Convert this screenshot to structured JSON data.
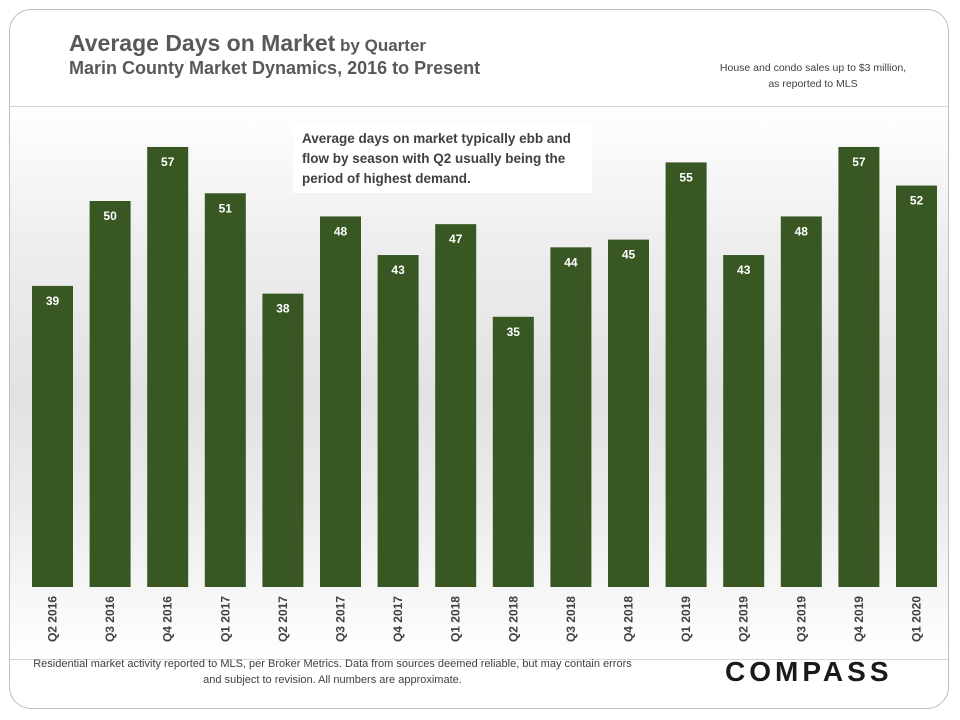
{
  "header": {
    "title_main": "Average Days on Market",
    "title_sub": " by Quarter",
    "subtitle": "Marin County Market Dynamics, 2016 to Present",
    "note": "House and condo sales up to $3 million, as reported to MLS"
  },
  "callout": "Average days on market typically ebb and flow by season with Q2 usually being the period of highest demand.",
  "footer": {
    "disclaimer": "Residential market activity reported to MLS, per Broker Metrics. Data from sources deemed reliable, but may contain errors and subject to revision. All numbers are approximate.",
    "logo": "COMPASS"
  },
  "colors": {
    "bar": "#385723",
    "label": "#ffffff",
    "axis_text": "#404040"
  },
  "chart_data": {
    "type": "bar",
    "title": "Average Days on Market by Quarter",
    "xlabel": "",
    "ylabel": "",
    "ylim": [
      0,
      60
    ],
    "grid": false,
    "categories": [
      "Q2 2016",
      "Q3 2016",
      "Q4 2016",
      "Q1 2017",
      "Q2 2017",
      "Q3 2017",
      "Q4 2017",
      "Q1 2018",
      "Q2 2018",
      "Q3 2018",
      "Q4 2018",
      "Q1 2019",
      "Q2 2019",
      "Q3 2019",
      "Q4 2019",
      "Q1 2020"
    ],
    "values": [
      39,
      50,
      57,
      51,
      38,
      48,
      43,
      47,
      35,
      44,
      45,
      55,
      43,
      48,
      57,
      52
    ]
  }
}
